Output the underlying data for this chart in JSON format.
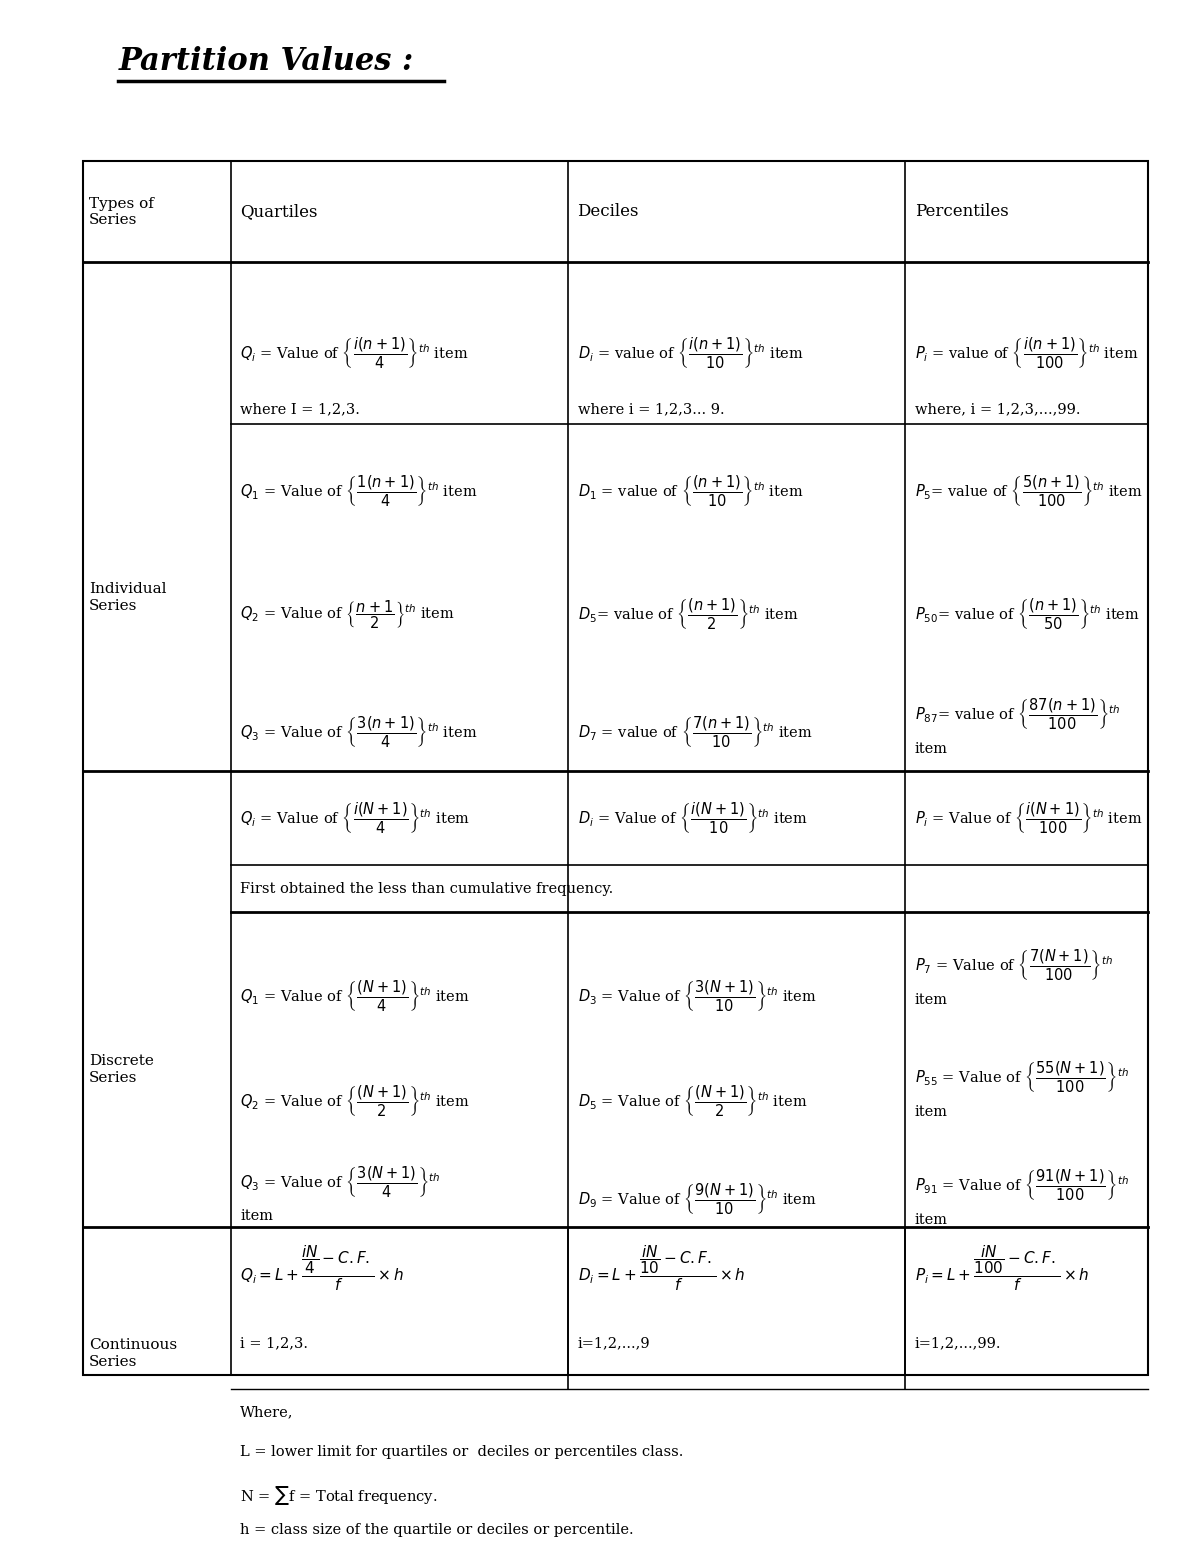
{
  "title": "Partition Values :",
  "title_fontsize": 22,
  "bg_color": "#ffffff",
  "text_color": "#000000",
  "headers": [
    "Types of\nSeries",
    "Quartiles",
    "Deciles",
    "Percentiles"
  ]
}
